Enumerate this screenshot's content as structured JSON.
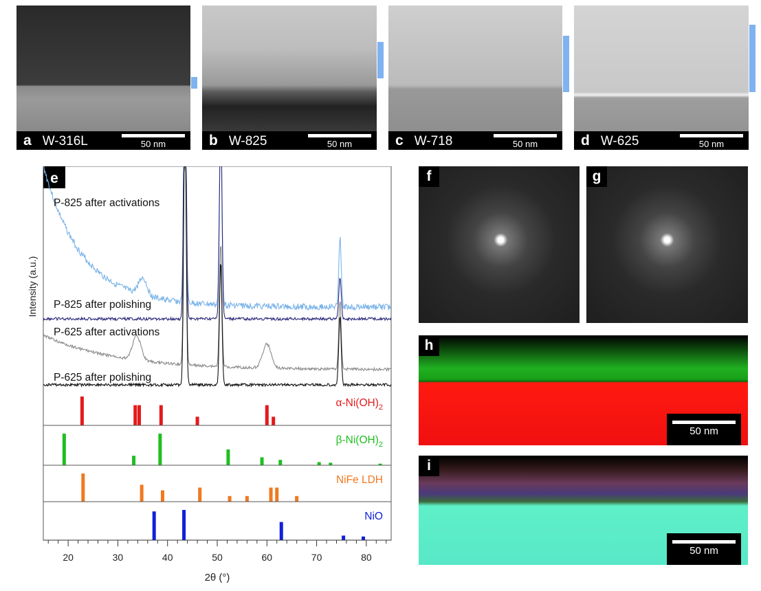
{
  "tem_panels": [
    {
      "letter": "a",
      "label": "W-316L",
      "scale": "50 nm"
    },
    {
      "letter": "b",
      "label": "W-825",
      "scale": "50 nm"
    },
    {
      "letter": "c",
      "label": "W-718",
      "scale": "50 nm"
    },
    {
      "letter": "d",
      "label": "W-625",
      "scale": "50 nm"
    }
  ],
  "saed": [
    {
      "letter": "f"
    },
    {
      "letter": "g"
    }
  ],
  "eds": [
    {
      "letter": "h",
      "scale": "50 nm"
    },
    {
      "letter": "i",
      "scale": "50 nm"
    }
  ],
  "colors": {
    "film_bar": "#7fb2f0",
    "alpha": "#e31a1c",
    "beta": "#1fbf1f",
    "ldh": "#f07820",
    "nio": "#1020d8"
  },
  "chart_data": {
    "type": "line",
    "panel_letter": "e",
    "xlabel": "2θ (°)",
    "ylabel": "Intensity (a.u.)",
    "xlim": [
      15,
      85
    ],
    "xticks": [
      20,
      30,
      40,
      50,
      60,
      70,
      80
    ],
    "series": [
      {
        "name": "P-825 after activations",
        "color": "#7ab3e8",
        "peaks": [
          35,
          43.5,
          50.7,
          74.7
        ]
      },
      {
        "name": "P-825 after polishing",
        "color": "#2c2a7a",
        "peaks": [
          43.5,
          50.7,
          74.7
        ]
      },
      {
        "name": "P-625 after activations",
        "color": "#8a8a8a",
        "peaks": [
          33.8,
          43.5,
          50.7,
          60,
          74.7
        ]
      },
      {
        "name": "P-625 after polishing",
        "color": "#111111",
        "peaks": [
          43.5,
          50.7,
          74.7
        ]
      }
    ],
    "references": [
      {
        "name": "α-Ni(OH)",
        "sub": "2",
        "color": "#e31a1c",
        "lines": [
          [
            22.8,
            1
          ],
          [
            33.5,
            0.7
          ],
          [
            34.3,
            0.7
          ],
          [
            38.7,
            0.7
          ],
          [
            46,
            0.3
          ],
          [
            60,
            0.7
          ],
          [
            61.3,
            0.3
          ]
        ]
      },
      {
        "name": "β-Ni(OH)",
        "sub": "2",
        "color": "#1fbf1f",
        "lines": [
          [
            19.2,
            1
          ],
          [
            33.2,
            0.3
          ],
          [
            38.5,
            1
          ],
          [
            52.2,
            0.5
          ],
          [
            59,
            0.25
          ],
          [
            62.7,
            0.17
          ],
          [
            70.5,
            0.1
          ],
          [
            72.8,
            0.08
          ],
          [
            82.8,
            0.05
          ]
        ]
      },
      {
        "name": "NiFe LDH",
        "sub": "",
        "color": "#f07820",
        "lines": [
          [
            23,
            1
          ],
          [
            34.8,
            0.6
          ],
          [
            39,
            0.4
          ],
          [
            46.5,
            0.5
          ],
          [
            52.5,
            0.2
          ],
          [
            56,
            0.2
          ],
          [
            60.8,
            0.5
          ],
          [
            62,
            0.5
          ],
          [
            66,
            0.2
          ]
        ]
      },
      {
        "name": "NiO",
        "sub": "",
        "color": "#1020d8",
        "lines": [
          [
            37.3,
            0.95
          ],
          [
            43.3,
            1
          ],
          [
            62.9,
            0.6
          ],
          [
            75.4,
            0.15
          ],
          [
            79.4,
            0.12
          ]
        ]
      }
    ]
  }
}
